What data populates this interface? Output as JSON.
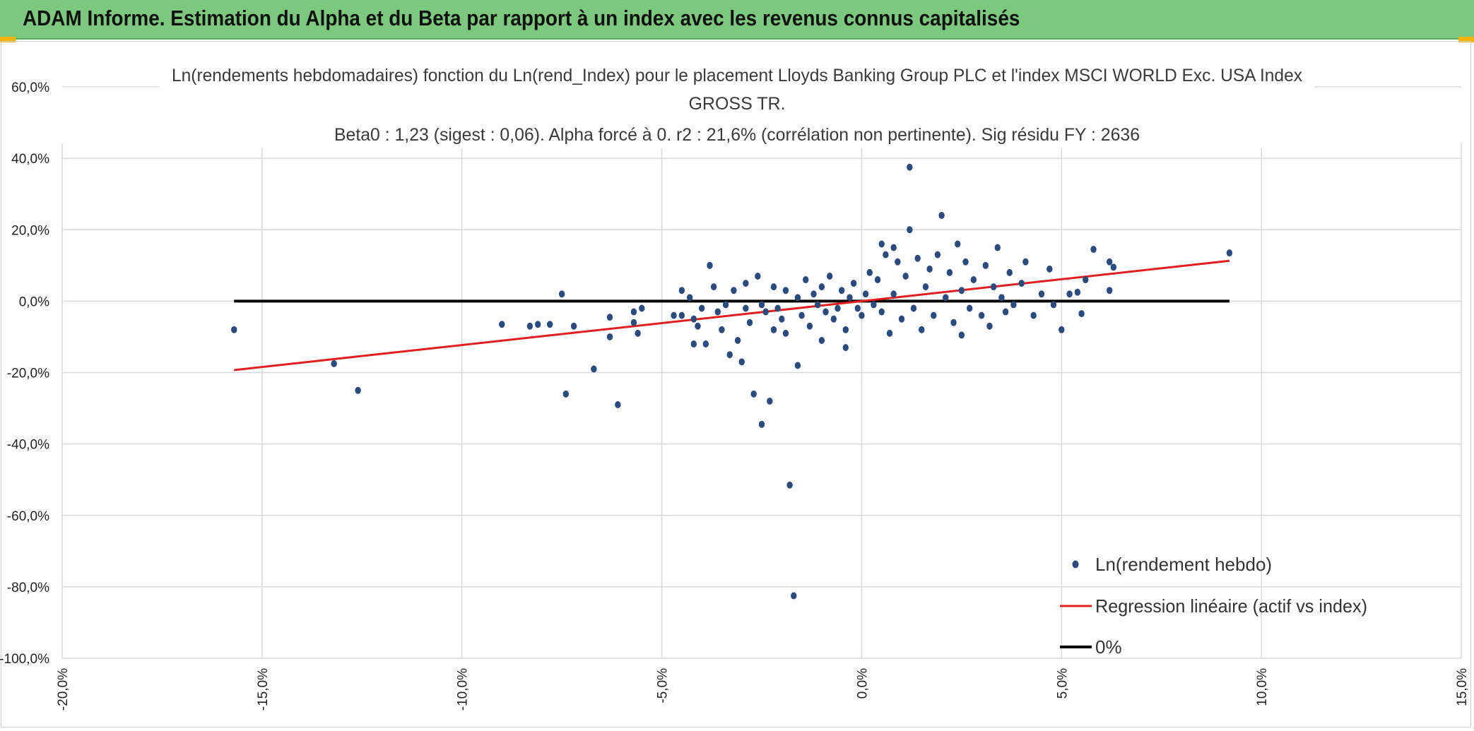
{
  "header": {
    "title": "ADAM Informe. Estimation du Alpha et du Beta par rapport à un index avec les revenus connus capitalisés",
    "background": "#7dc87f",
    "corner_color": "#f5b400"
  },
  "chart_data": {
    "type": "scatter",
    "title_lines": [
      "Ln(rendements hebdomadaires) fonction du Ln(rend_Index) pour le placement Lloyds Banking Group PLC et l'index MSCI WORLD Exc. USA Index",
      "GROSS TR.",
      "Beta0 : 1,23 (sigest : 0,06). Alpha forcé à 0. r2 : 21,6% (corrélation non pertinente). Sig résidu FY : 2636"
    ],
    "xlabel": "",
    "ylabel": "",
    "xlim": [
      -20,
      15
    ],
    "ylim": [
      -100,
      60
    ],
    "x_ticks": [
      -20,
      -15,
      -10,
      -5,
      0,
      5,
      10,
      15
    ],
    "x_tick_labels": [
      "-20,0%",
      "-15,0%",
      "-10,0%",
      "-5,0%",
      "0,0%",
      "5,0%",
      "10,0%",
      "15,0%"
    ],
    "y_ticks": [
      60,
      40,
      20,
      0,
      -20,
      -40,
      -60,
      -80,
      -100
    ],
    "y_tick_labels": [
      "60,0%",
      "40,0%",
      "20,0%",
      "0,0%",
      "-20,0%",
      "-40,0%",
      "-60,0%",
      "-80,0%",
      "-100,0%"
    ],
    "grid": true,
    "legend_position": "bottom-right",
    "colors": {
      "points": "#2b4a7e",
      "regression": "#e02020",
      "zero": "#000000",
      "grid": "#d9d9d9"
    },
    "series": [
      {
        "name": "Ln(rendement hebdo)",
        "kind": "scatter",
        "points": [
          [
            -15.7,
            -8
          ],
          [
            -13.2,
            -17.5
          ],
          [
            -12.6,
            -25
          ],
          [
            -9,
            -6.5
          ],
          [
            -8.3,
            -7
          ],
          [
            -8.1,
            -6.5
          ],
          [
            -7.8,
            -6.5
          ],
          [
            -7.5,
            2
          ],
          [
            -7.4,
            -26
          ],
          [
            -7.2,
            -7
          ],
          [
            -6.7,
            -19
          ],
          [
            -6.3,
            -4.5
          ],
          [
            -6.3,
            -10
          ],
          [
            -6.1,
            -29
          ],
          [
            -5.7,
            -3
          ],
          [
            -5.7,
            -6
          ],
          [
            -5.6,
            -9
          ],
          [
            -5.5,
            -2
          ],
          [
            -4.7,
            -4
          ],
          [
            -4.5,
            -4
          ],
          [
            -4.5,
            3
          ],
          [
            -4.3,
            1
          ],
          [
            -4.2,
            -5
          ],
          [
            -4.2,
            -12
          ],
          [
            -4.1,
            -7
          ],
          [
            -4.0,
            -2
          ],
          [
            -3.9,
            -12
          ],
          [
            -3.8,
            10
          ],
          [
            -3.7,
            4
          ],
          [
            -3.6,
            -3
          ],
          [
            -3.5,
            -8
          ],
          [
            -3.4,
            -1
          ],
          [
            -3.3,
            -15
          ],
          [
            -3.2,
            3
          ],
          [
            -3.1,
            -11
          ],
          [
            -3.0,
            -17
          ],
          [
            -2.9,
            -2
          ],
          [
            -2.9,
            5
          ],
          [
            -2.8,
            -6
          ],
          [
            -2.7,
            -26
          ],
          [
            -2.6,
            7
          ],
          [
            -2.5,
            -34.5
          ],
          [
            -2.5,
            -1
          ],
          [
            -2.4,
            -3
          ],
          [
            -2.3,
            -28
          ],
          [
            -2.2,
            4
          ],
          [
            -2.2,
            -8
          ],
          [
            -2.1,
            -2
          ],
          [
            -2.0,
            -5
          ],
          [
            -1.9,
            3
          ],
          [
            -1.9,
            -9
          ],
          [
            -1.8,
            -51.5
          ],
          [
            -1.7,
            -82.5
          ],
          [
            -1.6,
            -18
          ],
          [
            -1.6,
            1
          ],
          [
            -1.5,
            -4
          ],
          [
            -1.4,
            6
          ],
          [
            -1.3,
            -7
          ],
          [
            -1.2,
            2
          ],
          [
            -1.1,
            -1
          ],
          [
            -1.0,
            4
          ],
          [
            -1.0,
            -11
          ],
          [
            -0.9,
            -3
          ],
          [
            -0.8,
            7
          ],
          [
            -0.7,
            -5
          ],
          [
            -0.6,
            -2
          ],
          [
            -0.5,
            3
          ],
          [
            -0.4,
            -8
          ],
          [
            -0.4,
            -13
          ],
          [
            -0.3,
            1
          ],
          [
            -0.2,
            5
          ],
          [
            -0.1,
            -2
          ],
          [
            0.0,
            -4
          ],
          [
            0.1,
            2
          ],
          [
            0.2,
            8
          ],
          [
            0.3,
            -1
          ],
          [
            0.4,
            6
          ],
          [
            0.5,
            16
          ],
          [
            0.5,
            -3
          ],
          [
            0.6,
            13
          ],
          [
            0.7,
            -9
          ],
          [
            0.8,
            2
          ],
          [
            0.8,
            15
          ],
          [
            0.9,
            11
          ],
          [
            1.0,
            -5
          ],
          [
            1.1,
            7
          ],
          [
            1.2,
            20
          ],
          [
            1.2,
            37.5
          ],
          [
            1.3,
            -2
          ],
          [
            1.4,
            12
          ],
          [
            1.5,
            -8
          ],
          [
            1.6,
            4
          ],
          [
            1.7,
            9
          ],
          [
            1.8,
            -4
          ],
          [
            1.9,
            13
          ],
          [
            2.0,
            24
          ],
          [
            2.1,
            1
          ],
          [
            2.2,
            8
          ],
          [
            2.3,
            -6
          ],
          [
            2.4,
            16
          ],
          [
            2.5,
            3
          ],
          [
            2.5,
            -9.5
          ],
          [
            2.6,
            11
          ],
          [
            2.7,
            -2
          ],
          [
            2.8,
            6
          ],
          [
            3.0,
            -4
          ],
          [
            3.1,
            10
          ],
          [
            3.2,
            -7
          ],
          [
            3.3,
            4
          ],
          [
            3.4,
            15
          ],
          [
            3.5,
            1
          ],
          [
            3.6,
            -3
          ],
          [
            3.7,
            8
          ],
          [
            3.8,
            -1
          ],
          [
            4.0,
            5
          ],
          [
            4.1,
            11
          ],
          [
            4.3,
            -4
          ],
          [
            4.5,
            2
          ],
          [
            4.7,
            9
          ],
          [
            4.8,
            -1
          ],
          [
            5.0,
            -8
          ],
          [
            5.2,
            2
          ],
          [
            5.4,
            2.5
          ],
          [
            5.5,
            -3.5
          ],
          [
            5.6,
            6
          ],
          [
            5.8,
            14.5
          ],
          [
            6.2,
            11
          ],
          [
            6.2,
            3
          ],
          [
            6.3,
            9.5
          ],
          [
            9.2,
            13.5
          ]
        ]
      },
      {
        "name": "Regression linéaire (actif vs index)",
        "kind": "line",
        "points": [
          [
            -15.7,
            -19.3
          ],
          [
            9.2,
            11.3
          ]
        ]
      },
      {
        "name": "0%",
        "kind": "line",
        "points": [
          [
            -15.7,
            0
          ],
          [
            9.2,
            0
          ]
        ]
      }
    ]
  }
}
